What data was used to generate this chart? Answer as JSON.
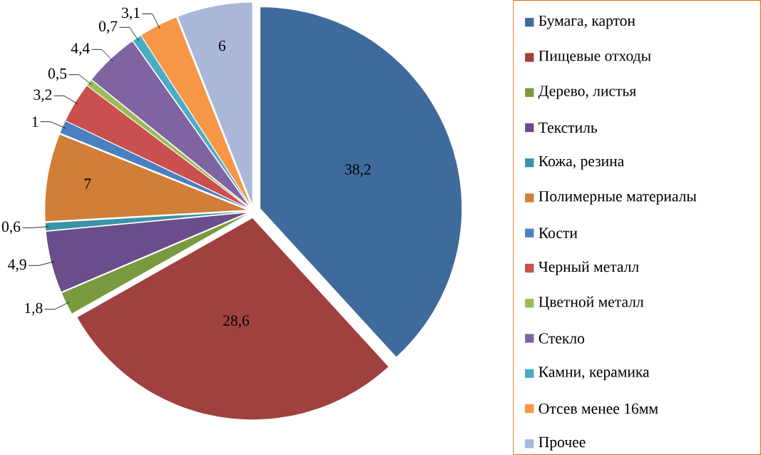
{
  "chart_data": {
    "type": "pie",
    "categories": [
      "Бумага, картон",
      "Пищевые отходы",
      "Дерево, листья",
      "Текстиль",
      "Кожа, резина",
      "Полимерные материалы",
      "Кости",
      "Черный металл",
      "Цветной металл",
      "Стекло",
      "Камни, керамика",
      "Отсев менее 16мм",
      "Прочее"
    ],
    "values": [
      38.2,
      28.6,
      1.8,
      4.9,
      0.6,
      7,
      1,
      3.2,
      0.5,
      4.4,
      0.7,
      3.1,
      6
    ],
    "value_labels": [
      "38,2",
      "28,6",
      "1,8",
      "4,9",
      "0,6",
      "7",
      "1",
      "3,2",
      "0,5",
      "4,4",
      "0,7",
      "3,1",
      "6"
    ],
    "colors": [
      "#3f6a9c",
      "#a0413f",
      "#7a9a3f",
      "#6a4d8a",
      "#3a93a8",
      "#d07e38",
      "#4a80c0",
      "#c9504e",
      "#9bbb59",
      "#8064a2",
      "#4bacc6",
      "#f79646",
      "#a9b8d8"
    ],
    "legend": "right"
  }
}
